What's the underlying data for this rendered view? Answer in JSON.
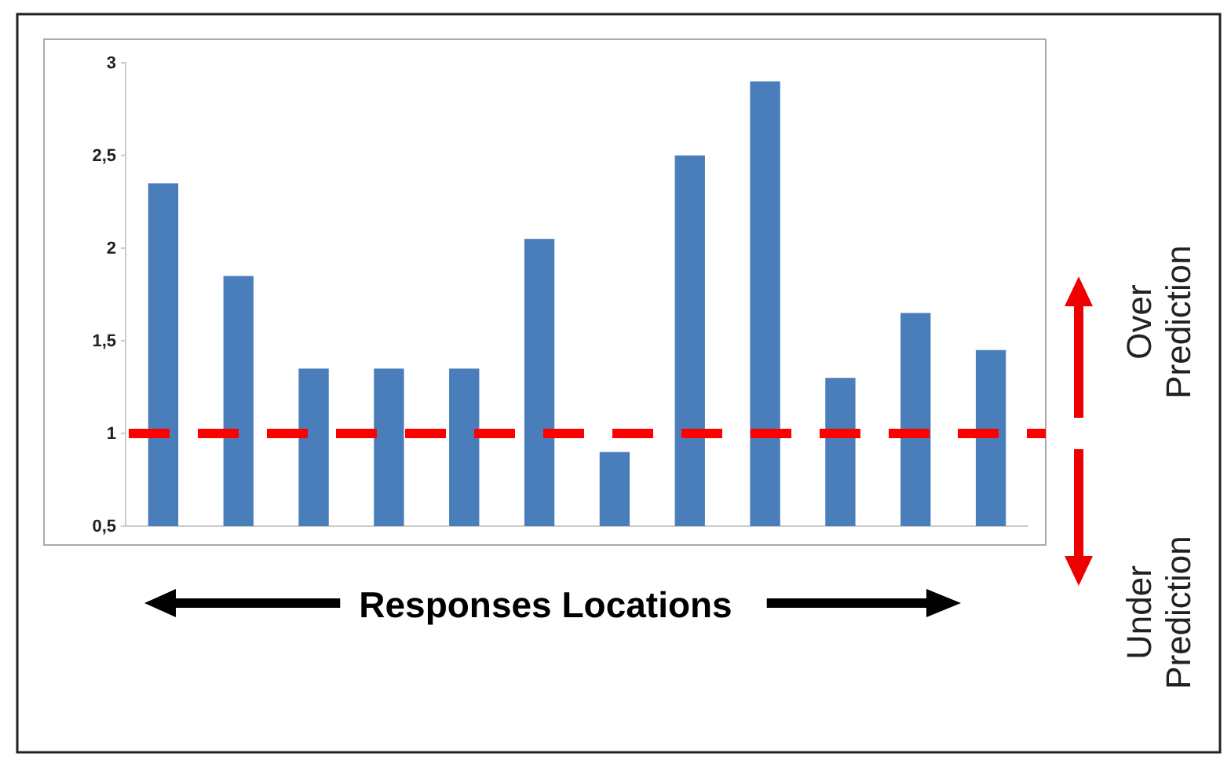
{
  "chart_data": {
    "type": "bar",
    "xlabel": "Responses Locations",
    "categories": [
      null,
      null,
      null,
      null,
      null,
      null,
      null,
      null,
      null,
      null,
      null,
      null
    ],
    "values": [
      2.35,
      1.85,
      1.35,
      1.35,
      1.35,
      2.05,
      0.9,
      2.5,
      2.9,
      1.3,
      1.65,
      1.45
    ],
    "color": "#4a7ebb",
    "ylim": [
      0.5,
      3
    ],
    "yticks": [
      {
        "value": 0.5,
        "label": "0,5"
      },
      1,
      {
        "value": 1.5,
        "label": "1,5"
      },
      2,
      {
        "value": 2.5,
        "label": "2,5"
      },
      3
    ],
    "ref_lines": [
      {
        "axis": "y",
        "value": 1,
        "color": "#ff0000",
        "line_style": "dashed"
      }
    ],
    "annotations": [
      "Over Prediction",
      "Under Prediction"
    ]
  }
}
